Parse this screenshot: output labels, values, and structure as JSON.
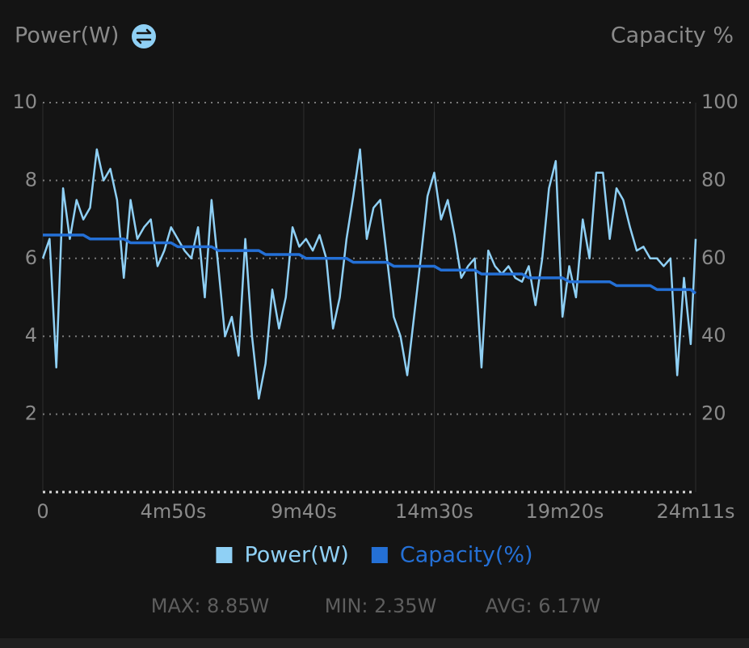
{
  "chart_data": {
    "type": "line",
    "title": "Power(W)",
    "y2_label": "Capacity %",
    "x": [
      0,
      15,
      30,
      45,
      60,
      75,
      90,
      105,
      120,
      135,
      150,
      165,
      180,
      195,
      210,
      225,
      240,
      255,
      270,
      285,
      300,
      315,
      330,
      345,
      360,
      375,
      390,
      405,
      420,
      435,
      450,
      465,
      480,
      495,
      510,
      525,
      540,
      555,
      570,
      585,
      600,
      615,
      630,
      645,
      660,
      675,
      690,
      705,
      720,
      735,
      750,
      765,
      780,
      795,
      810,
      825,
      840,
      855,
      870,
      885,
      900,
      915,
      930,
      945,
      960,
      975,
      990,
      1005,
      1020,
      1035,
      1050,
      1065,
      1080,
      1095,
      1110,
      1125,
      1140,
      1155,
      1170,
      1185,
      1200,
      1215,
      1230,
      1245,
      1260,
      1275,
      1290,
      1305,
      1320,
      1335,
      1350,
      1365,
      1380,
      1395,
      1410,
      1425,
      1440,
      1451
    ],
    "series": [
      {
        "name": "Power(W)",
        "color": "#8fd0f5",
        "axis": "y",
        "values": [
          6.0,
          6.5,
          3.2,
          7.8,
          6.5,
          7.5,
          7.0,
          7.3,
          8.8,
          8.0,
          8.3,
          7.5,
          5.5,
          7.5,
          6.5,
          6.8,
          7.0,
          5.8,
          6.2,
          6.8,
          6.5,
          6.2,
          6.0,
          6.8,
          5.0,
          7.5,
          5.8,
          4.0,
          4.5,
          3.5,
          6.5,
          4.0,
          2.4,
          3.3,
          5.2,
          4.2,
          5.0,
          6.8,
          6.3,
          6.5,
          6.2,
          6.6,
          6.0,
          4.2,
          5.0,
          6.5,
          7.6,
          8.8,
          6.5,
          7.3,
          7.5,
          6.0,
          4.5,
          4.0,
          3.0,
          4.5,
          6.0,
          7.6,
          8.2,
          7.0,
          7.5,
          6.6,
          5.5,
          5.8,
          6.0,
          3.2,
          6.2,
          5.8,
          5.6,
          5.8,
          5.5,
          5.4,
          5.8,
          4.8,
          6.0,
          7.8,
          8.5,
          4.5,
          5.8,
          5.0,
          7.0,
          6.0,
          8.2,
          8.2,
          6.5,
          7.8,
          7.5,
          6.8,
          6.2,
          6.3,
          6.0,
          6.0,
          5.8,
          6.0,
          3.0,
          5.5,
          3.8,
          6.5
        ]
      },
      {
        "name": "Capacity(%)",
        "color": "#2470d6",
        "axis": "y2",
        "values": [
          66,
          66,
          66,
          66,
          66,
          66,
          66,
          65,
          65,
          65,
          65,
          65,
          65,
          64,
          64,
          64,
          64,
          64,
          64,
          64,
          63,
          63,
          63,
          63,
          63,
          63,
          62,
          62,
          62,
          62,
          62,
          62,
          62,
          61,
          61,
          61,
          61,
          61,
          61,
          60,
          60,
          60,
          60,
          60,
          60,
          60,
          59,
          59,
          59,
          59,
          59,
          59,
          58,
          58,
          58,
          58,
          58,
          58,
          58,
          57,
          57,
          57,
          57,
          57,
          57,
          56,
          56,
          56,
          56,
          56,
          56,
          56,
          55,
          55,
          55,
          55,
          55,
          55,
          54,
          54,
          54,
          54,
          54,
          54,
          54,
          53,
          53,
          53,
          53,
          53,
          53,
          52,
          52,
          52,
          52,
          52,
          52,
          51
        ]
      }
    ],
    "xlim": [
      0,
      1451
    ],
    "xticks": [
      0,
      {
        "value": 290,
        "label": "4m50s"
      },
      {
        "value": 580,
        "label": "9m40s"
      },
      {
        "value": 870,
        "label": "14m30s"
      },
      {
        "value": 1160,
        "label": "19m20s"
      },
      {
        "value": 1451,
        "label": "24m11s"
      }
    ],
    "ylim": [
      0,
      10
    ],
    "yticks": [
      2,
      4,
      6,
      8,
      10
    ],
    "y2lim": [
      0,
      100
    ],
    "y2ticks": [
      20,
      40,
      60,
      80,
      100
    ],
    "grid": true,
    "legend": "bottom",
    "stats": [
      "MAX: 8.85W",
      "MIN: 2.35W",
      "AVG: 6.17W"
    ]
  }
}
